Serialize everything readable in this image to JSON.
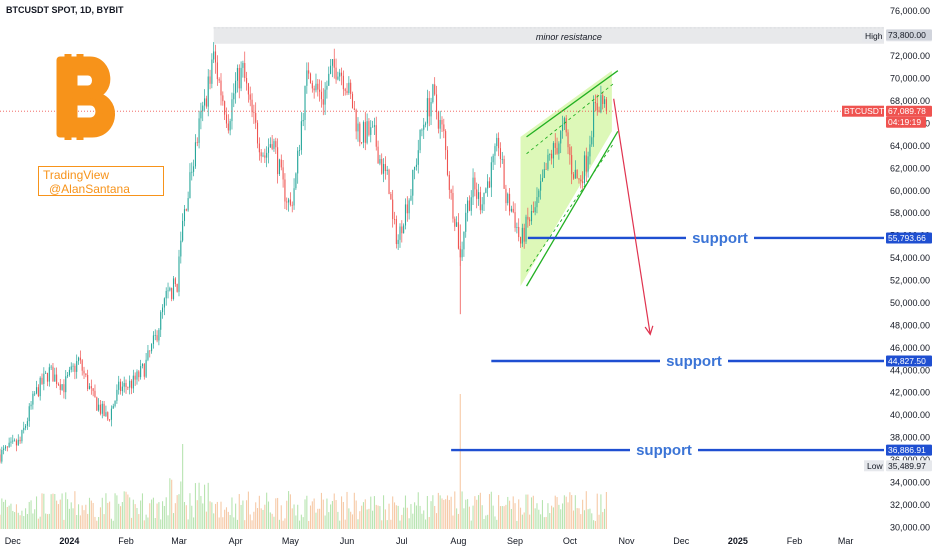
{
  "header": {
    "title": "BTCUSDT SPOT, 1D, BYBIT"
  },
  "watermark": {
    "line1": "TradingView",
    "line2": "@AlanSantana"
  },
  "logo": {
    "icon": "bitcoin-icon",
    "color": "#f7931a"
  },
  "colors": {
    "up": "#26a69a",
    "up_bright": "#2dbd39",
    "down": "#ef5350",
    "support": "#1f4fd1",
    "channel_fill": "#d9f7b0",
    "channel_line": "#22b022",
    "arrow": "#e0334f",
    "vol_up": "#b7e4b0",
    "vol_down": "#f6c9a6"
  },
  "annotations": {
    "minor_resistance": "minor resistance",
    "support_labels": [
      "support",
      "support",
      "support"
    ]
  },
  "price_tags": {
    "high_label": "High",
    "high_value": "73,800.00",
    "resistance_value": "73,800.00",
    "symbol": "BTCUSDT",
    "last_price": "67,089.78",
    "countdown": "04:19:19",
    "support1": "55,793.66",
    "support2": "44,827.50",
    "support3": "36,886.91",
    "low_label": "Low",
    "low_value": "35,489.97"
  },
  "chart_data": {
    "type": "candlestick",
    "title": "BTCUSDT SPOT, 1D, BYBIT",
    "ylim": [
      29500,
      77000
    ],
    "y_ticks": [
      30000,
      32000,
      34000,
      36000,
      38000,
      40000,
      42000,
      44000,
      46000,
      48000,
      50000,
      52000,
      54000,
      56000,
      58000,
      60000,
      62000,
      64000,
      66000,
      68000,
      70000,
      72000,
      74000,
      76000
    ],
    "y_tick_labels": [
      "30,000.00",
      "32,000.00",
      "34,000.00",
      "36,000.00",
      "38,000.00",
      "40,000.00",
      "42,000.00",
      "44,000.00",
      "46,000.00",
      "48,000.00",
      "50,000.00",
      "52,000.00",
      "54,000.00",
      "56,000.00",
      "58,000.00",
      "60,000.00",
      "62,000.00",
      "64,000.00",
      "66,000.00",
      "68,000.00",
      "70,000.00",
      "72,000.00",
      "74,000.00",
      "76,000.00"
    ],
    "x_labels": [
      "Dec",
      "2024",
      "Feb",
      "Mar",
      "Apr",
      "May",
      "Jun",
      "Jul",
      "Aug",
      "Sep",
      "Oct",
      "Nov",
      "Dec",
      "2025",
      "Feb",
      "Mar"
    ],
    "x_label_days": [
      0,
      31,
      62,
      91,
      122,
      152,
      183,
      213,
      244,
      275,
      305,
      336,
      366,
      397,
      428,
      456
    ],
    "bold_x_labels": [
      "2024",
      "2025"
    ],
    "day_range": [
      -7,
      477
    ],
    "price_path": [
      [
        -7,
        36500
      ],
      [
        4,
        37600
      ],
      [
        12,
        41800
      ],
      [
        20,
        43900
      ],
      [
        28,
        42600
      ],
      [
        36,
        44900
      ],
      [
        44,
        41500
      ],
      [
        52,
        39600
      ],
      [
        58,
        42300
      ],
      [
        66,
        42900
      ],
      [
        72,
        44200
      ],
      [
        78,
        46800
      ],
      [
        84,
        50500
      ],
      [
        90,
        51800
      ],
      [
        93,
        57100
      ],
      [
        98,
        61900
      ],
      [
        102,
        65600
      ],
      [
        106,
        68600
      ],
      [
        110,
        71900
      ],
      [
        114,
        68900
      ],
      [
        118,
        66300
      ],
      [
        122,
        69500
      ],
      [
        126,
        70700
      ],
      [
        130,
        67300
      ],
      [
        134,
        64900
      ],
      [
        138,
        63100
      ],
      [
        142,
        64800
      ],
      [
        148,
        60300
      ],
      [
        152,
        58500
      ],
      [
        155,
        61200
      ],
      [
        158,
        66100
      ],
      [
        162,
        71000
      ],
      [
        166,
        69100
      ],
      [
        170,
        68300
      ],
      [
        174,
        70500
      ],
      [
        178,
        71200
      ],
      [
        182,
        69800
      ],
      [
        186,
        67600
      ],
      [
        190,
        64900
      ],
      [
        194,
        65200
      ],
      [
        198,
        64800
      ],
      [
        202,
        62200
      ],
      [
        206,
        60600
      ],
      [
        208,
        57100
      ],
      [
        211,
        55600
      ],
      [
        214,
        57900
      ],
      [
        218,
        60000
      ],
      [
        222,
        63800
      ],
      [
        226,
        66900
      ],
      [
        230,
        68400
      ],
      [
        233,
        66500
      ],
      [
        236,
        64800
      ],
      [
        240,
        59300
      ],
      [
        243,
        57000
      ],
      [
        245,
        53800
      ],
      [
        248,
        58300
      ],
      [
        252,
        60200
      ],
      [
        256,
        59100
      ],
      [
        260,
        60700
      ],
      [
        264,
        62900
      ],
      [
        266,
        64400
      ],
      [
        270,
        59200
      ],
      [
        274,
        58100
      ],
      [
        278,
        55300
      ],
      [
        282,
        57200
      ],
      [
        286,
        58200
      ],
      [
        290,
        60600
      ],
      [
        294,
        63000
      ],
      [
        298,
        64100
      ],
      [
        302,
        65600
      ],
      [
        306,
        62100
      ],
      [
        310,
        60800
      ],
      [
        314,
        62700
      ],
      [
        318,
        66900
      ],
      [
        322,
        68200
      ],
      [
        325,
        67089.78
      ]
    ],
    "high": 73800.0,
    "low": 35489.97,
    "last_price": 67089.78,
    "support_levels": [
      55793.66,
      44827.5,
      36886.91
    ],
    "resistance_zone": [
      73100,
      74600
    ],
    "rising_channel": {
      "upper": [
        [
          278,
          64800
        ],
        [
          328,
          70700
        ]
      ],
      "lower": [
        [
          278,
          51500
        ],
        [
          328,
          65300
        ]
      ],
      "mid_upper": [
        [
          278,
          63300
        ],
        [
          326,
          69600
        ]
      ],
      "mid_lower": [
        [
          278,
          52800
        ],
        [
          326,
          64300
        ]
      ]
    },
    "projection_arrow": [
      [
        329,
        68200
      ],
      [
        349,
        47200
      ]
    ]
  }
}
